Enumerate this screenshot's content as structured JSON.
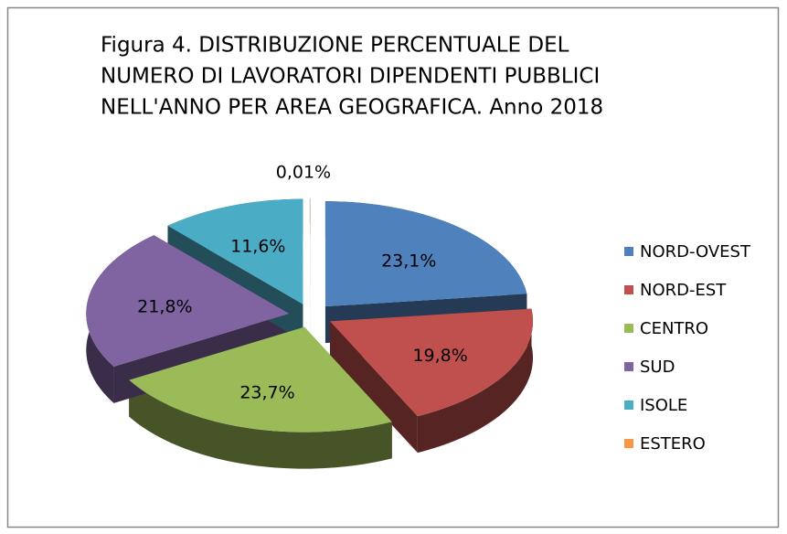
{
  "chart_data": {
    "type": "pie",
    "title": [
      "Figura 4. DISTRIBUZIONE PERCENTUALE DEL",
      "NUMERO DI LAVORATORI DIPENDENTI PUBBLICI",
      "NELL'ANNO PER AREA GEOGRAFICA. Anno 2018"
    ],
    "categories": [
      "NORD-OVEST",
      "NORD-EST",
      "CENTRO",
      "SUD",
      "ISOLE",
      "ESTERO"
    ],
    "values": [
      23.1,
      19.8,
      23.7,
      21.8,
      11.6,
      0.01
    ],
    "value_labels": [
      "23,1%",
      "19,8%",
      "23,7%",
      "21,8%",
      "11,6%",
      "0,01%"
    ],
    "colors": [
      "#4F81BD",
      "#C0504D",
      "#9BBB59",
      "#8064A2",
      "#4BACC6",
      "#F79646"
    ],
    "legend": "right"
  }
}
